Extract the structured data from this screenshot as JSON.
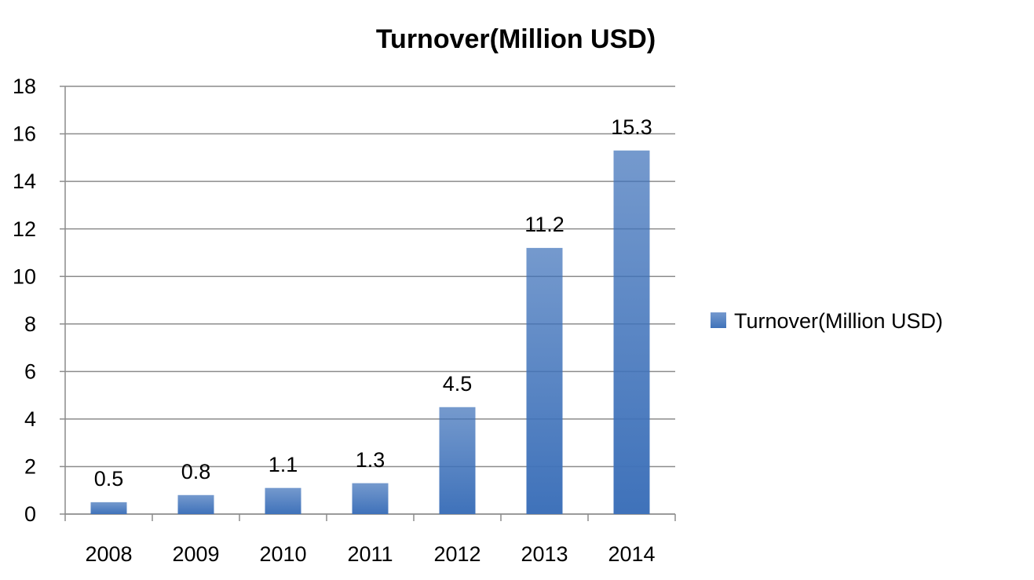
{
  "chart_data": {
    "type": "bar",
    "title": "Turnover(Million USD)",
    "categories": [
      "2008",
      "2009",
      "2010",
      "2011",
      "2012",
      "2013",
      "2014"
    ],
    "series": [
      {
        "name": "Turnover(Million USD)",
        "color": "#3f72ba",
        "values": [
          0.5,
          0.8,
          1.1,
          1.3,
          4.5,
          11.2,
          15.3
        ]
      }
    ],
    "ylim": [
      0,
      18
    ],
    "yticks": [
      0,
      2,
      4,
      6,
      8,
      10,
      12,
      14,
      16,
      18
    ],
    "grid": true,
    "legend": "right",
    "data_labels": true
  }
}
